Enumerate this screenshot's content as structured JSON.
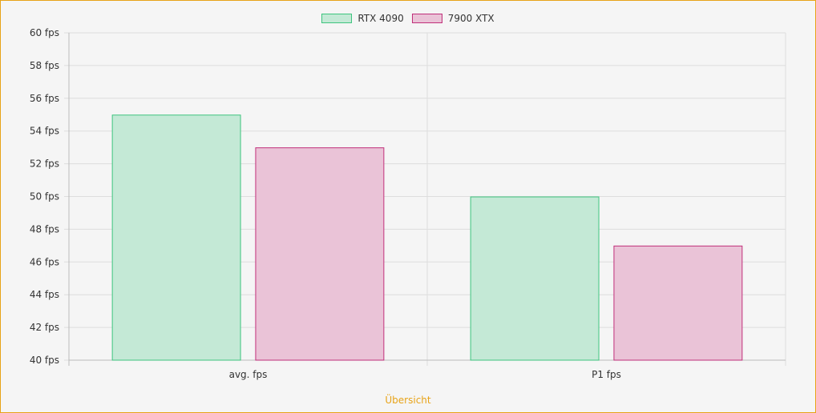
{
  "chart_data": {
    "type": "bar",
    "categories": [
      "avg. fps",
      "P1 fps"
    ],
    "series": [
      {
        "name": "RTX 4090",
        "values": [
          55,
          50
        ],
        "fill": "#c4e9d6",
        "stroke": "#3ec47e"
      },
      {
        "name": "7900 XTX",
        "values": [
          53,
          47
        ],
        "fill": "#eac3d7",
        "stroke": "#c0307a"
      }
    ],
    "ylim": [
      40,
      60
    ],
    "yticks": [
      "40 fps",
      "42 fps",
      "44 fps",
      "46 fps",
      "48 fps",
      "50 fps",
      "52 fps",
      "54 fps",
      "56 fps",
      "58 fps",
      "60 fps"
    ],
    "xlabel": "Übersicht",
    "grid": true,
    "legend_position": "top-center"
  },
  "colors": {
    "frame_border": "#e8a317",
    "background": "#f5f5f5",
    "grid": "#dddddd",
    "axis": "#bbbbbb",
    "text": "#333333",
    "caption": "#e8a317"
  }
}
